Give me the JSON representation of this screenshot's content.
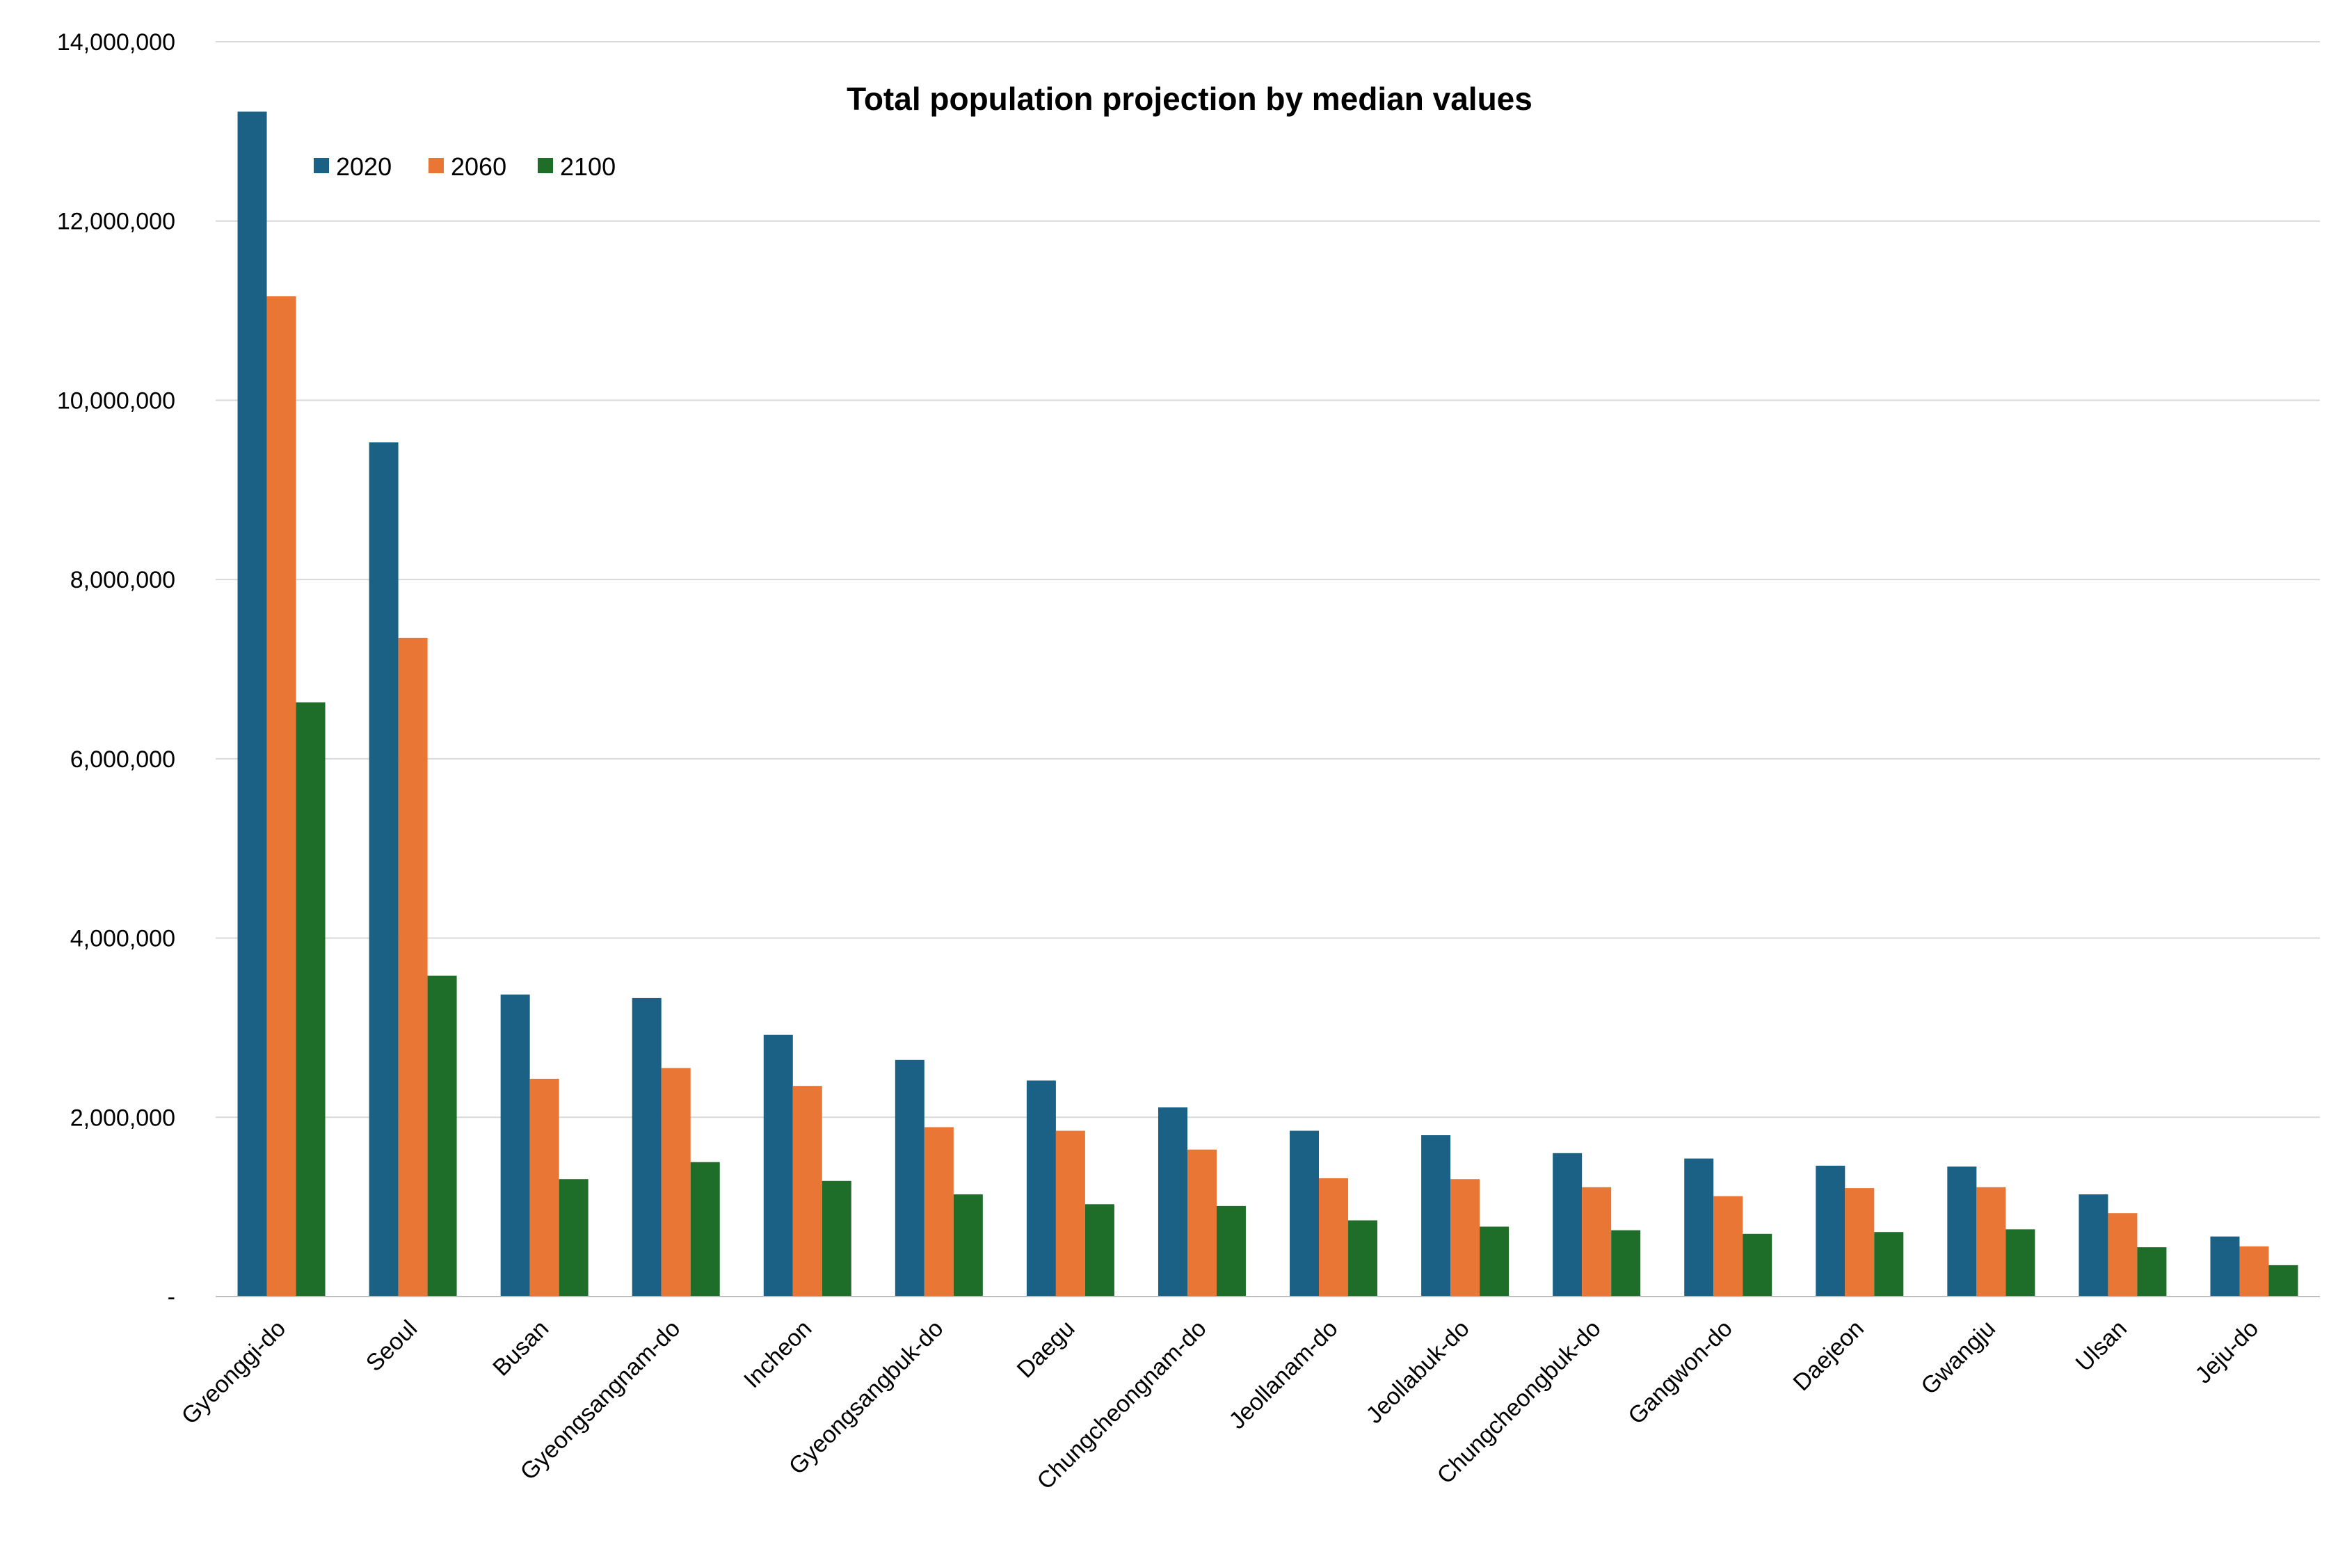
{
  "chart_data": {
    "type": "bar",
    "title": "Total population projection by median values",
    "xlabel": "",
    "ylabel": "",
    "ylim": [
      0,
      14000000
    ],
    "yticks": [
      0,
      2000000,
      4000000,
      6000000,
      8000000,
      10000000,
      12000000,
      14000000
    ],
    "ytick_labels": [
      "-",
      "2,000,000",
      "4,000,000",
      "6,000,000",
      "8,000,000",
      "10,000,000",
      "12,000,000",
      "14,000,000"
    ],
    "grid": true,
    "legend_position": "top-left",
    "categories": [
      "Gyeonggi-do",
      "Seoul",
      "Busan",
      "Gyeongsangnam-do",
      "Incheon",
      "Gyeongsangbuk-do",
      "Daegu",
      "Chungcheongnam-do",
      "Jeollanam-do",
      "Jeollabuk-do",
      "Chungcheongbuk-do",
      "Gangwon-do",
      "Daejeon",
      "Gwangju",
      "Ulsan",
      "Jeju-do"
    ],
    "series": [
      {
        "name": "2020",
        "color": "#1a6185",
        "values": [
          13220000,
          9530000,
          3370000,
          3330000,
          2920000,
          2640000,
          2410000,
          2110000,
          1850000,
          1800000,
          1600000,
          1540000,
          1460000,
          1450000,
          1140000,
          670000
        ]
      },
      {
        "name": "2060",
        "color": "#ea7636",
        "values": [
          11160000,
          7350000,
          2430000,
          2550000,
          2350000,
          1890000,
          1850000,
          1640000,
          1320000,
          1310000,
          1220000,
          1120000,
          1210000,
          1220000,
          930000,
          560000
        ]
      },
      {
        "name": "2100",
        "color": "#1e6e2a",
        "values": [
          6630000,
          3580000,
          1310000,
          1500000,
          1290000,
          1140000,
          1030000,
          1010000,
          850000,
          780000,
          740000,
          700000,
          720000,
          750000,
          550000,
          350000
        ]
      }
    ]
  }
}
